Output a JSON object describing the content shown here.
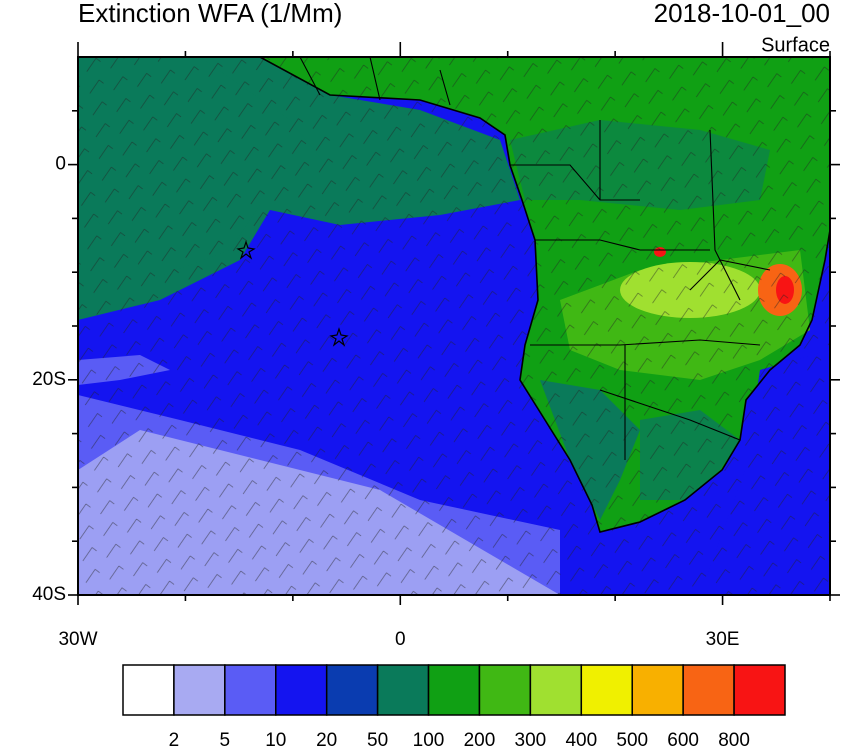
{
  "header": {
    "title": "Extinction WFA (1/Mm)",
    "date": "2018-10-01_00",
    "level": "Surface"
  },
  "map": {
    "lon_range": [
      -30,
      40
    ],
    "lat_range": [
      -40,
      10
    ],
    "lat_ticks": [
      0,
      {
        "value": -20,
        "label": "20S"
      },
      {
        "value": -40,
        "label": "40S"
      }
    ],
    "lon_ticks": [
      {
        "value": -30,
        "label": "30W"
      },
      0,
      {
        "value": 30,
        "label": "30E"
      }
    ],
    "minor_lon_ticks": [
      -20,
      -10,
      10,
      20,
      40
    ],
    "minor_lat_ticks": [
      5,
      -5,
      -10,
      -15,
      -25,
      -30,
      -35
    ]
  },
  "colorbar": {
    "levels": [
      2,
      5,
      10,
      20,
      50,
      100,
      200,
      300,
      400,
      500,
      600,
      800
    ],
    "colors": [
      "#ffffff",
      "#a8aaf2",
      "#5a5cf5",
      "#1414f0",
      "#0a3cb0",
      "#0a7a5a",
      "#10a014",
      "#40b814",
      "#a0e030",
      "#f0f000",
      "#f8b000",
      "#f86414",
      "#f81414"
    ]
  }
}
